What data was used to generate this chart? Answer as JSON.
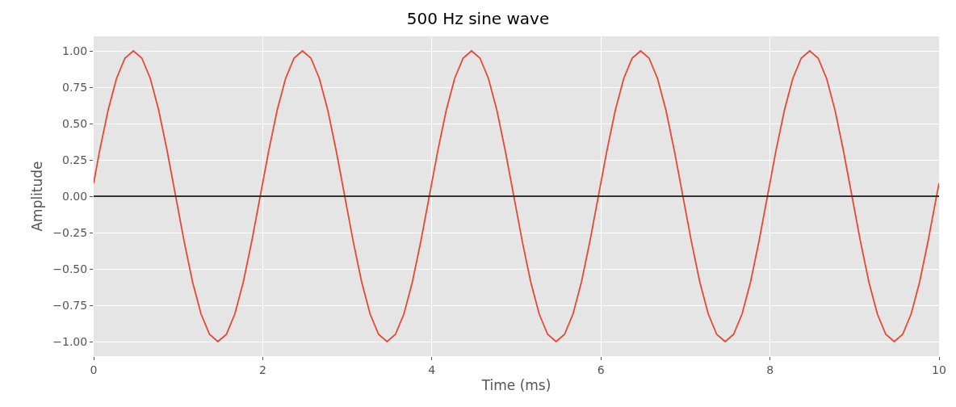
{
  "chart_data": {
    "type": "line",
    "title": "500 Hz sine wave",
    "xlabel": "Time (ms)",
    "ylabel": "Amplitude",
    "x": [
      0,
      0.07,
      0.17,
      0.27,
      0.37,
      0.47,
      0.57,
      0.67,
      0.77,
      0.87,
      0.97,
      1.07,
      1.17,
      1.27,
      1.37,
      1.47,
      1.57,
      1.67,
      1.77,
      1.87,
      1.97,
      2.07,
      2.17,
      2.27,
      2.37,
      2.47,
      2.57,
      2.67,
      2.77,
      2.87,
      2.97,
      3.07,
      3.17,
      3.27,
      3.37,
      3.47,
      3.57,
      3.67,
      3.77,
      3.87,
      3.97,
      4.07,
      4.17,
      4.27,
      4.37,
      4.47,
      4.57,
      4.67,
      4.77,
      4.87,
      4.97,
      5.07,
      5.17,
      5.27,
      5.37,
      5.47,
      5.57,
      5.67,
      5.77,
      5.87,
      5.97,
      6.07,
      6.17,
      6.27,
      6.37,
      6.47,
      6.57,
      6.67,
      6.77,
      6.87,
      6.97,
      7.07,
      7.17,
      7.27,
      7.37,
      7.47,
      7.57,
      7.67,
      7.77,
      7.87,
      7.97,
      8.07,
      8.17,
      8.27,
      8.37,
      8.47,
      8.57,
      8.67,
      8.77,
      8.87,
      8.97,
      9.07,
      9.17,
      9.27,
      9.37,
      9.47,
      9.57,
      9.67,
      9.77,
      9.87,
      9.97,
      10
    ],
    "series": [
      {
        "color": "#e24a33",
        "values": [
          0.09,
          0.31,
          0.59,
          0.81,
          0.95,
          1,
          0.95,
          0.81,
          0.59,
          0.31,
          0,
          -0.31,
          -0.59,
          -0.81,
          -0.95,
          -1,
          -0.95,
          -0.81,
          -0.59,
          -0.31,
          0,
          0.31,
          0.59,
          0.81,
          0.95,
          1,
          0.95,
          0.81,
          0.59,
          0.31,
          0,
          -0.31,
          -0.59,
          -0.81,
          -0.95,
          -1,
          -0.95,
          -0.81,
          -0.59,
          -0.31,
          0,
          0.31,
          0.59,
          0.81,
          0.95,
          1,
          0.95,
          0.81,
          0.59,
          0.31,
          0,
          -0.31,
          -0.59,
          -0.81,
          -0.95,
          -1,
          -0.95,
          -0.81,
          -0.59,
          -0.31,
          0,
          0.31,
          0.59,
          0.81,
          0.95,
          1,
          0.95,
          0.81,
          0.59,
          0.31,
          0,
          -0.31,
          -0.59,
          -0.81,
          -0.95,
          -1,
          -0.95,
          -0.81,
          -0.59,
          -0.31,
          0,
          0.31,
          0.59,
          0.81,
          0.95,
          1,
          0.95,
          0.81,
          0.59,
          0.31,
          0,
          -0.31,
          -0.59,
          -0.81,
          -0.95,
          -1,
          -0.95,
          -0.81,
          -0.59,
          -0.31,
          0,
          0.09
        ]
      }
    ],
    "xlim": [
      0,
      10
    ],
    "xticks": [
      0,
      2,
      4,
      6,
      8,
      10
    ],
    "ylim": [
      -1.1,
      1.1
    ],
    "yticks": [
      {
        "value": -1,
        "label": "−1.00"
      },
      {
        "value": -0.75,
        "label": "−0.75"
      },
      {
        "value": -0.5,
        "label": "−0.50"
      },
      {
        "value": -0.25,
        "label": "−0.25"
      },
      {
        "value": 0,
        "label": "0.00"
      },
      {
        "value": 0.25,
        "label": "0.25"
      },
      {
        "value": 0.5,
        "label": "0.50"
      },
      {
        "value": 0.75,
        "label": "0.75"
      },
      {
        "value": 1,
        "label": "1.00"
      }
    ],
    "ref_lines": [
      {
        "axis": "y",
        "value": 0,
        "color": "#333333"
      }
    ],
    "grid": true
  }
}
